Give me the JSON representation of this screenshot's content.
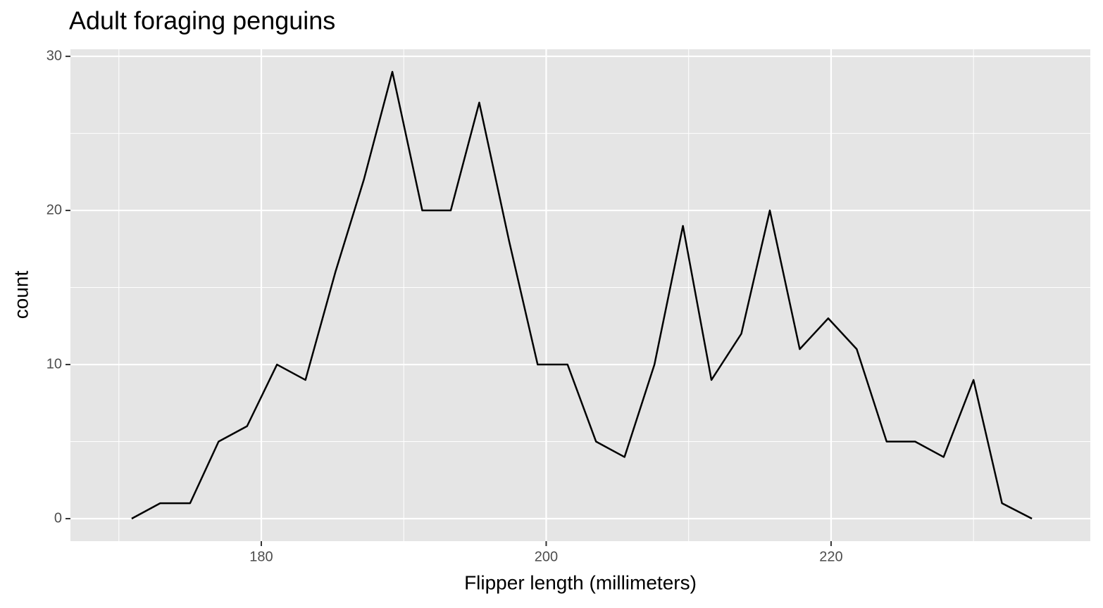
{
  "chart_data": {
    "type": "line",
    "title": "Adult foraging penguins",
    "x_label": "Flipper length (millimeters)",
    "y_label": "count",
    "x": [
      170.9,
      172.9,
      175.0,
      177.0,
      179.0,
      181.1,
      183.1,
      185.2,
      187.2,
      189.2,
      191.3,
      193.3,
      195.3,
      197.4,
      199.4,
      201.5,
      203.5,
      205.5,
      207.6,
      209.6,
      211.6,
      213.7,
      215.7,
      217.8,
      219.8,
      221.8,
      223.9,
      225.9,
      227.9,
      230.0,
      232.0,
      234.1
    ],
    "series": [
      {
        "color": "#000000",
        "values": [
          0,
          1,
          1,
          5,
          6,
          10,
          9,
          16,
          22,
          29,
          20,
          20,
          27,
          18,
          10,
          10,
          5,
          4,
          10,
          19,
          9,
          12,
          20,
          11,
          13,
          11,
          5,
          5,
          4,
          9,
          1,
          0
        ]
      }
    ],
    "xlim": [
      166.6,
      238.2
    ],
    "ylim": [
      -1.46,
      30.46
    ],
    "xticks": [
      180,
      200,
      220
    ],
    "yticks": [
      0,
      10,
      20,
      30
    ],
    "xminor": [
      170,
      190,
      210,
      230
    ],
    "yminor": [
      5,
      15,
      25
    ],
    "grid": true
  }
}
